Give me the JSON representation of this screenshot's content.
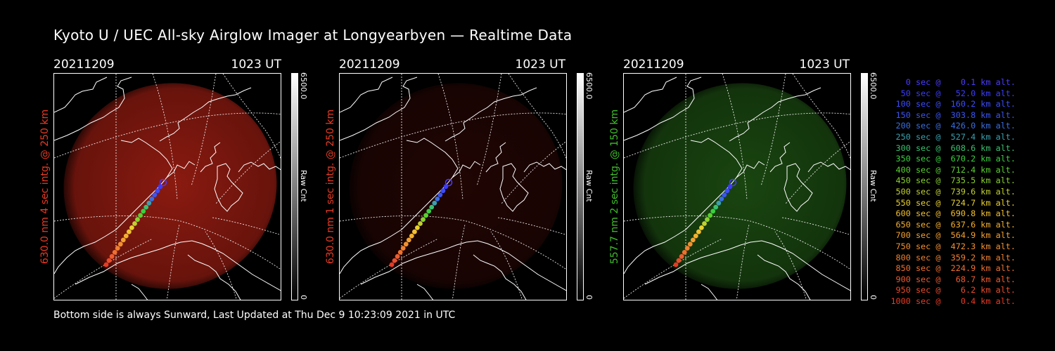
{
  "title": "Kyoto U / UEC All-sky Airglow Imager at Longyearbyen — Realtime Data",
  "panels": [
    {
      "date": "20211209",
      "time": "1023 UT",
      "side_label": "630.0 nm 4 sec intg. @ 250 km",
      "side_color": "#e83a23",
      "cbar_max": "6500.0",
      "cbar_min": "0",
      "cbar_unit": "Raw Cnt",
      "glow": "#8a1a10",
      "glow_strength": 1.0
    },
    {
      "date": "20211209",
      "time": "1023 UT",
      "side_label": "630.0 nm 1 sec intg. @ 250 km",
      "side_color": "#e83a23",
      "cbar_max": "6500.0",
      "cbar_min": "0",
      "cbar_unit": "Raw Cnt",
      "glow": "#3a0a06",
      "glow_strength": 0.55
    },
    {
      "date": "20211209",
      "time": "1023 UT",
      "side_label": "557.7 nm 2 sec intg. @ 150 km",
      "side_color": "#3fbf2a",
      "cbar_max": "6500.0",
      "cbar_min": "0",
      "cbar_unit": "Raw Cnt",
      "glow": "#1c4d12",
      "glow_strength": 0.9
    }
  ],
  "legend": [
    {
      "text": "   0 sec @    0.1 km alt.",
      "color": "#4b3cff"
    },
    {
      "text": "  50 sec @   52.0 km alt.",
      "color": "#3c3cff"
    },
    {
      "text": " 100 sec @  160.2 km alt.",
      "color": "#3c4cff"
    },
    {
      "text": " 150 sec @  303.8 km alt.",
      "color": "#3b55f0"
    },
    {
      "text": " 200 sec @  426.0 km alt.",
      "color": "#3a6ee0"
    },
    {
      "text": " 250 sec @  527.4 km alt.",
      "color": "#3aa0b0"
    },
    {
      "text": " 300 sec @  608.6 km alt.",
      "color": "#3ac070"
    },
    {
      "text": " 350 sec @  670.2 km alt.",
      "color": "#3ad040"
    },
    {
      "text": " 400 sec @  712.4 km alt.",
      "color": "#5ad030"
    },
    {
      "text": " 450 sec @  735.5 km alt.",
      "color": "#8ad030"
    },
    {
      "text": " 500 sec @  739.6 km alt.",
      "color": "#c0d030"
    },
    {
      "text": " 550 sec @  724.7 km alt.",
      "color": "#e8d030"
    },
    {
      "text": " 600 sec @  690.8 km alt.",
      "color": "#f2c030"
    },
    {
      "text": " 650 sec @  637.6 km alt.",
      "color": "#f2b030"
    },
    {
      "text": " 700 sec @  564.9 km alt.",
      "color": "#f2a030"
    },
    {
      "text": " 750 sec @  472.3 km alt.",
      "color": "#f29030"
    },
    {
      "text": " 800 sec @  359.2 km alt.",
      "color": "#f08030"
    },
    {
      "text": " 850 sec @  224.9 km alt.",
      "color": "#ee7030"
    },
    {
      "text": " 900 sec @   68.7 km alt.",
      "color": "#ec5c30"
    },
    {
      "text": " 950 sec @    6.2 km alt.",
      "color": "#ea4c2c"
    },
    {
      "text": "1000 sec @    0.4 km alt.",
      "color": "#e83a23"
    }
  ],
  "footer": "Bottom side is always Sunward, Last Updated at Thu Dec  9 10:23:09 2021 in UTC"
}
